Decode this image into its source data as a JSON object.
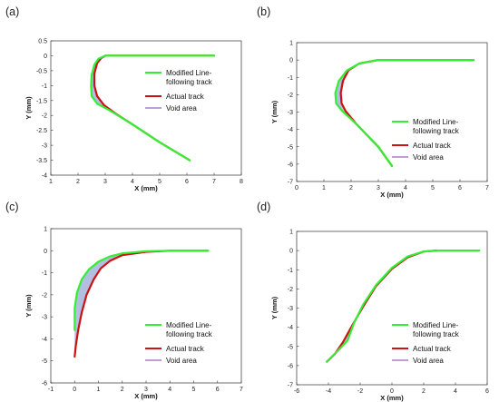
{
  "figure": {
    "colors": {
      "modified": "#33ee33",
      "actual": "#cc1111",
      "void_fill": "#9aaad8",
      "void_line": "#b07ad0"
    },
    "legend": {
      "modified_line1": "Modified Line-",
      "modified_line2": "following track",
      "actual": "Actual track",
      "void": "Void area"
    }
  },
  "chart_data": [
    {
      "type": "line",
      "panel": "(a)",
      "xlabel": "X (mm)",
      "ylabel": "Y (mm)",
      "xlim": [
        1,
        8
      ],
      "ylim": [
        -4,
        0.5
      ],
      "xticks": [
        1,
        2,
        3,
        4,
        5,
        6,
        7,
        8
      ],
      "yticks": [
        0.5,
        0,
        -0.5,
        -1,
        -1.5,
        -2,
        -2.5,
        -3,
        -3.5,
        -4
      ],
      "grid": false,
      "legend_position": "right",
      "series": [
        {
          "name": "Modified Line-following track",
          "x": [
            7.0,
            3.0,
            2.75,
            2.6,
            2.5,
            2.48,
            2.5,
            2.7,
            3.2,
            4.0,
            5.0,
            6.1
          ],
          "y": [
            0.0,
            0.0,
            -0.1,
            -0.3,
            -0.65,
            -1.0,
            -1.35,
            -1.6,
            -1.85,
            -2.3,
            -2.9,
            -3.5
          ]
        },
        {
          "name": "Actual track",
          "x": [
            7.0,
            3.0,
            2.85,
            2.7,
            2.6,
            2.6,
            2.7,
            2.95,
            3.4,
            4.0,
            5.0,
            6.1
          ],
          "y": [
            0.0,
            0.0,
            -0.08,
            -0.25,
            -0.6,
            -1.0,
            -1.35,
            -1.65,
            -1.95,
            -2.3,
            -2.9,
            -3.5
          ]
        }
      ]
    },
    {
      "type": "line",
      "panel": "(b)",
      "xlabel": "X (mm)",
      "ylabel": "Y (mm)",
      "xlim": [
        0,
        7
      ],
      "ylim": [
        -7,
        1
      ],
      "xticks": [
        0,
        1,
        2,
        3,
        4,
        5,
        6,
        7
      ],
      "yticks": [
        1,
        0,
        -1,
        -2,
        -3,
        -4,
        -5,
        -6,
        -7
      ],
      "grid": false,
      "legend_position": "lower-right",
      "series": [
        {
          "name": "Modified Line-following track",
          "x": [
            6.5,
            3.0,
            2.3,
            1.85,
            1.55,
            1.42,
            1.45,
            1.65,
            2.2,
            3.0,
            3.5
          ],
          "y": [
            0.0,
            0.0,
            -0.2,
            -0.6,
            -1.2,
            -1.9,
            -2.5,
            -2.9,
            -3.7,
            -5.0,
            -6.1
          ]
        },
        {
          "name": "Actual track",
          "x": [
            6.5,
            3.0,
            2.3,
            1.9,
            1.7,
            1.62,
            1.65,
            1.8,
            2.2,
            3.0,
            3.5
          ],
          "y": [
            0.0,
            0.0,
            -0.2,
            -0.6,
            -1.2,
            -1.9,
            -2.5,
            -2.95,
            -3.7,
            -5.0,
            -6.1
          ]
        }
      ]
    },
    {
      "type": "line",
      "panel": "(c)",
      "xlabel": "X (mm)",
      "ylabel": "Y (mm)",
      "xlim": [
        -1,
        7
      ],
      "ylim": [
        -6,
        1
      ],
      "xticks": [
        -1,
        0,
        1,
        2,
        3,
        4,
        5,
        6,
        7
      ],
      "yticks": [
        1,
        0,
        -1,
        -2,
        -3,
        -4,
        -5,
        -6
      ],
      "grid": false,
      "legend_position": "lower-right",
      "series": [
        {
          "name": "Modified Line-following track",
          "x": [
            5.6,
            4.0,
            3.0,
            2.0,
            1.5,
            1.0,
            0.6,
            0.3,
            0.1,
            0.0,
            0.0
          ],
          "y": [
            0.0,
            0.0,
            -0.02,
            -0.12,
            -0.25,
            -0.5,
            -0.85,
            -1.3,
            -1.9,
            -2.6,
            -3.6
          ]
        },
        {
          "name": "Actual track",
          "x": [
            5.6,
            4.0,
            3.0,
            2.0,
            1.5,
            1.1,
            0.8,
            0.5,
            0.3,
            0.15,
            0.05,
            0.0
          ],
          "y": [
            0.0,
            0.0,
            -0.05,
            -0.2,
            -0.45,
            -0.8,
            -1.3,
            -2.0,
            -2.8,
            -3.6,
            -4.3,
            -4.8
          ]
        }
      ]
    },
    {
      "type": "line",
      "panel": "(d)",
      "xlabel": "X (mm)",
      "ylabel": "Y (mm)",
      "xlim": [
        -6,
        6
      ],
      "ylim": [
        -7,
        1
      ],
      "xticks": [
        -6,
        -4,
        -2,
        0,
        2,
        4,
        6
      ],
      "yticks": [
        1,
        0,
        -1,
        -2,
        -3,
        -4,
        -5,
        -6,
        -7
      ],
      "grid": false,
      "legend_position": "lower-right",
      "series": [
        {
          "name": "Modified Line-following track",
          "x": [
            5.5,
            3.0,
            2.0,
            1.0,
            0.0,
            -1.0,
            -1.8,
            -2.4,
            -2.8,
            -3.5,
            -4.1
          ],
          "y": [
            0.0,
            0.0,
            -0.05,
            -0.3,
            -0.9,
            -1.8,
            -2.8,
            -3.8,
            -4.7,
            -5.3,
            -5.8
          ]
        },
        {
          "name": "Actual track",
          "x": [
            2.8,
            2.0,
            1.0,
            0.0,
            -1.0,
            -1.8,
            -2.5,
            -3.1,
            -3.6,
            -4.1
          ],
          "y": [
            0.0,
            -0.05,
            -0.35,
            -0.95,
            -1.85,
            -2.9,
            -3.9,
            -4.8,
            -5.4,
            -5.8
          ]
        }
      ]
    }
  ]
}
